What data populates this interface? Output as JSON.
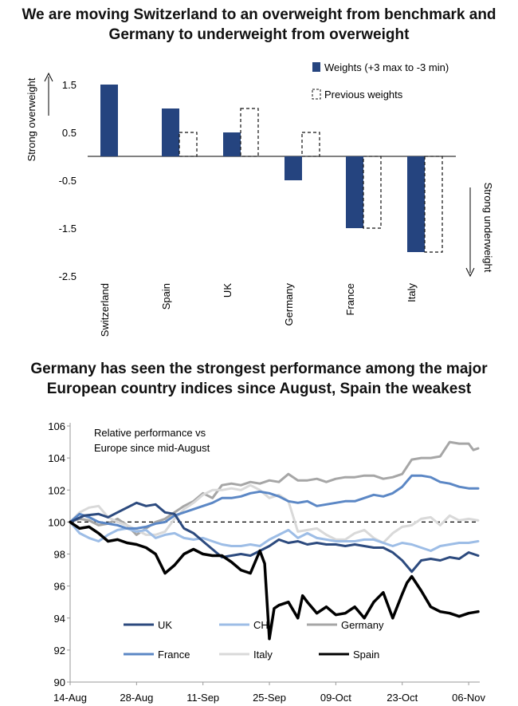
{
  "chart_data": [
    {
      "type": "bar",
      "title": "We are moving Switzerland to an overweight from benchmark and Germany to underweight from overweight",
      "title_line1": "We are moving Switzerland to an overweight from benchmark and",
      "title_line2": "Germany to underweight from overweight",
      "categories": [
        "Switzerland",
        "Spain",
        "UK",
        "Germany",
        "France",
        "Italy"
      ],
      "series": [
        {
          "name": "Weights (+3 max to -3 min)",
          "values": [
            1.5,
            1.0,
            0.5,
            -0.5,
            -1.5,
            -2.0
          ],
          "color": "#25447f",
          "style": "solid"
        },
        {
          "name": "Previous weights",
          "values": [
            0.0,
            0.5,
            1.0,
            0.5,
            -1.5,
            -2.0
          ],
          "color": "#111111",
          "style": "dashed"
        }
      ],
      "y_ticks": [
        1.5,
        0.5,
        -0.5,
        -1.5,
        -2.5
      ],
      "ylim": [
        -2.5,
        2.0
      ],
      "y_annotation_top": "Strong overweight",
      "y_annotation_bottom": "Strong underweight",
      "legend_position": "top-right"
    },
    {
      "type": "line",
      "title": "Germany has seen the strongest performance among the major European country indices since August, Spain the weakest",
      "title_line1": "Germany has seen the strongest performance among the major",
      "title_line2": "European country indices since August, Spain the weakest",
      "annotation_line1": "Relative performance vs",
      "annotation_line2": "Europe since mid-August",
      "x_ticks": [
        "14-Aug",
        "28-Aug",
        "11-Sep",
        "25-Sep",
        "09-Oct",
        "23-Oct",
        "06-Nov"
      ],
      "x_range": [
        "2015-08-14",
        "2015-11-09"
      ],
      "y_ticks": [
        90,
        92,
        94,
        96,
        98,
        100,
        102,
        104,
        106
      ],
      "ylim": [
        90,
        106
      ],
      "reference_line": 100,
      "legend_position": "bottom",
      "series": [
        {
          "name": "UK",
          "color": "#2c4a7e",
          "width": 3,
          "x": [
            0,
            3,
            6,
            8,
            10,
            12,
            14,
            16,
            18,
            20,
            22,
            24,
            26,
            28,
            30,
            32,
            34,
            36,
            38,
            40,
            42,
            44,
            46,
            48,
            50,
            52,
            54,
            56,
            58,
            60,
            62,
            64,
            66,
            68,
            70,
            72,
            74,
            76,
            78,
            80,
            82,
            84,
            86
          ],
          "y": [
            100,
            100.4,
            100.5,
            100.3,
            100.6,
            100.9,
            101.2,
            101,
            101.1,
            100.6,
            100.5,
            99.6,
            99.3,
            98.8,
            98.3,
            97.8,
            97.9,
            98,
            97.9,
            98.2,
            98.5,
            98.9,
            98.7,
            98.8,
            98.6,
            98.7,
            98.6,
            98.6,
            98.5,
            98.6,
            98.5,
            98.4,
            98.4,
            98.1,
            97.6,
            96.9,
            97.6,
            97.7,
            97.6,
            97.8,
            97.7,
            98.1,
            97.9
          ]
        },
        {
          "name": "CH",
          "color": "#9dbde6",
          "width": 3,
          "x": [
            0,
            2,
            4,
            6,
            8,
            10,
            12,
            14,
            16,
            18,
            20,
            22,
            24,
            26,
            28,
            30,
            32,
            34,
            36,
            38,
            40,
            42,
            44,
            46,
            48,
            50,
            52,
            54,
            56,
            58,
            60,
            62,
            64,
            66,
            68,
            70,
            72,
            74,
            76,
            78,
            80,
            82,
            84,
            86
          ],
          "y": [
            100,
            99.3,
            99.0,
            98.8,
            99.2,
            99.5,
            99.6,
            99.4,
            99.5,
            99.0,
            99.2,
            99.3,
            99.0,
            98.9,
            99.0,
            98.8,
            98.6,
            98.5,
            98.5,
            98.6,
            98.5,
            98.9,
            99.2,
            99.5,
            99.0,
            99.3,
            99.0,
            98.9,
            98.8,
            98.8,
            98.8,
            98.9,
            98.9,
            98.7,
            98.5,
            98.7,
            98.6,
            98.4,
            98.2,
            98.5,
            98.6,
            98.7,
            98.7,
            98.8
          ]
        },
        {
          "name": "Germany",
          "color": "#a6a6a6",
          "width": 3,
          "x": [
            0,
            2,
            4,
            6,
            8,
            10,
            12,
            14,
            16,
            18,
            20,
            22,
            24,
            26,
            28,
            30,
            32,
            34,
            36,
            38,
            40,
            42,
            44,
            46,
            48,
            50,
            52,
            54,
            56,
            58,
            60,
            62,
            64,
            66,
            68,
            70,
            72,
            74,
            76,
            78,
            80,
            82,
            84,
            85,
            86
          ],
          "y": [
            100,
            100.2,
            100.1,
            99.8,
            99.9,
            100.2,
            99.8,
            99.2,
            99.6,
            100.0,
            100.2,
            100.6,
            101.0,
            101.3,
            101.8,
            101.5,
            102.3,
            102.4,
            102.3,
            102.5,
            102.4,
            102.6,
            102.5,
            103.0,
            102.6,
            102.6,
            102.7,
            102.5,
            102.7,
            102.8,
            102.8,
            102.9,
            102.9,
            102.7,
            102.8,
            103.0,
            103.9,
            104.0,
            104.0,
            104.1,
            105.0,
            104.9,
            104.9,
            104.5,
            104.6
          ]
        },
        {
          "name": "France",
          "color": "#5b87c5",
          "width": 3,
          "x": [
            0,
            2,
            4,
            6,
            8,
            10,
            12,
            14,
            16,
            18,
            20,
            22,
            24,
            26,
            28,
            30,
            32,
            34,
            36,
            38,
            40,
            42,
            44,
            46,
            48,
            50,
            52,
            54,
            56,
            58,
            60,
            62,
            64,
            66,
            68,
            70,
            72,
            74,
            76,
            78,
            80,
            82,
            84,
            86
          ],
          "y": [
            100,
            100.5,
            100.3,
            100.0,
            99.9,
            99.8,
            99.6,
            99.6,
            99.7,
            99.9,
            100.0,
            100.4,
            100.6,
            100.8,
            101.0,
            101.2,
            101.5,
            101.5,
            101.6,
            101.8,
            101.9,
            101.8,
            101.6,
            101.3,
            101.2,
            101.3,
            101.0,
            101.1,
            101.2,
            101.3,
            101.3,
            101.5,
            101.7,
            101.6,
            101.8,
            102.2,
            102.9,
            102.9,
            102.8,
            102.5,
            102.4,
            102.2,
            102.1,
            102.1
          ]
        },
        {
          "name": "Italy",
          "color": "#d9d9d9",
          "width": 3,
          "x": [
            0,
            2,
            4,
            6,
            8,
            10,
            12,
            14,
            16,
            18,
            20,
            22,
            24,
            26,
            28,
            30,
            32,
            34,
            36,
            38,
            40,
            42,
            44,
            46,
            48,
            50,
            52,
            54,
            56,
            58,
            60,
            62,
            64,
            66,
            68,
            70,
            72,
            74,
            76,
            78,
            80,
            82,
            84,
            86
          ],
          "y": [
            100,
            100.6,
            100.9,
            101.0,
            100.3,
            100.0,
            99.8,
            99.5,
            99.2,
            99.2,
            99.4,
            100.2,
            100.8,
            101.2,
            101.7,
            102.0,
            102.0,
            102.1,
            102.0,
            102.3,
            102.0,
            101.5,
            101.7,
            101.3,
            99.4,
            99.5,
            99.6,
            99.2,
            98.9,
            98.9,
            99.3,
            99.5,
            99.0,
            98.7,
            99.3,
            99.7,
            99.8,
            100.2,
            100.3,
            99.8,
            100.4,
            100.1,
            100.2,
            100.1
          ]
        },
        {
          "name": "Spain",
          "color": "#000000",
          "width": 3.5,
          "x": [
            0,
            2,
            4,
            6,
            8,
            10,
            12,
            14,
            16,
            18,
            20,
            22,
            24,
            26,
            28,
            30,
            32,
            34,
            36,
            38,
            40,
            41,
            42,
            43,
            44,
            46,
            48,
            49,
            50,
            52,
            54,
            56,
            58,
            60,
            62,
            64,
            66,
            68,
            70,
            71,
            72,
            74,
            76,
            78,
            80,
            82,
            84,
            86
          ],
          "y": [
            100,
            99.6,
            99.7,
            99.3,
            98.8,
            98.9,
            98.7,
            98.6,
            98.4,
            98.0,
            96.8,
            97.3,
            98.0,
            98.3,
            98.0,
            97.9,
            97.9,
            97.5,
            97.0,
            96.8,
            98.2,
            97.4,
            92.7,
            94.6,
            94.8,
            95.0,
            94.0,
            95.4,
            95.0,
            94.3,
            94.7,
            94.2,
            94.3,
            94.7,
            94.0,
            95.0,
            95.6,
            94.0,
            95.5,
            96.2,
            96.6,
            95.7,
            94.7,
            94.4,
            94.3,
            94.1,
            94.3,
            94.4
          ]
        }
      ]
    }
  ]
}
